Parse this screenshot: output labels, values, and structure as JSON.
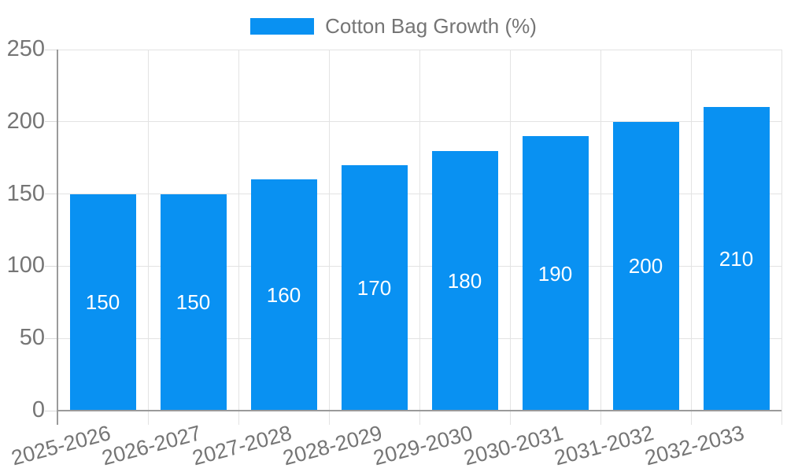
{
  "chart_data": {
    "type": "bar",
    "title": "",
    "legend": {
      "label": "Cotton Bag Growth (%)",
      "position": "top"
    },
    "categories": [
      "2025-2026",
      "2026-2027",
      "2027-2028",
      "2028-2029",
      "2029-2030",
      "2030-2031",
      "2031-2032",
      "2032-2033"
    ],
    "series": [
      {
        "name": "Cotton Bag Growth (%)",
        "color": "#0991f2",
        "values": [
          150,
          150,
          160,
          170,
          180,
          190,
          200,
          210
        ]
      }
    ],
    "bar_value_labels": [
      "150",
      "150",
      "160",
      "170",
      "180",
      "190",
      "200",
      "210"
    ],
    "ylabel": "",
    "xlabel": "",
    "ylim": [
      0,
      250
    ],
    "yticks": [
      0,
      50,
      100,
      150,
      200,
      250
    ],
    "grid": true,
    "value_label_position": "center",
    "value_label_color": "#ffffff",
    "colors": {
      "bar": "#0991f2",
      "text": "#757575",
      "gridline": "#e3e3e3",
      "axis": "#9a9a9a"
    }
  }
}
